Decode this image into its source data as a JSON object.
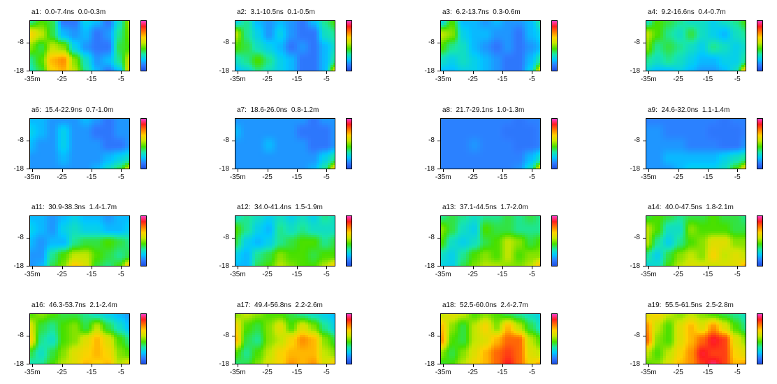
{
  "chart_data": {
    "type": "heatmap",
    "colorscale": [
      "#1f4fe0",
      "#2f7bff",
      "#00c8ff",
      "#18e6a8",
      "#44e000",
      "#c8e600",
      "#ffd000",
      "#ff7a00",
      "#ff1e1e",
      "#ff3cc8"
    ],
    "x_ticks": [
      "-35m",
      "-25",
      "-15",
      "-5"
    ],
    "x_tick_values": [
      -35,
      -25,
      -15,
      -5
    ],
    "xlim": [
      -36,
      -2
    ],
    "y_ticks": [
      "-8",
      "-18"
    ],
    "y_tick_values": [
      -8,
      -18
    ],
    "ylim": [
      -18,
      0
    ],
    "panels": [
      {
        "label": "a1:  0.0-7.4ns  0.0-0.3m",
        "intensity": [
          [
            0.35,
            0.45,
            0.4,
            0.1,
            0.1,
            0.25,
            0.2,
            0.1,
            0.3,
            0.55
          ],
          [
            0.65,
            0.55,
            0.4,
            0.2,
            0.15,
            0.2,
            0.1,
            0.15,
            0.35,
            0.5
          ],
          [
            0.5,
            0.4,
            0.55,
            0.5,
            0.25,
            0.15,
            0.1,
            0.1,
            0.4,
            0.45
          ],
          [
            0.35,
            0.45,
            0.7,
            0.75,
            0.5,
            0.3,
            0.15,
            0.2,
            0.35,
            0.6
          ],
          [
            0.3,
            0.4,
            0.65,
            0.7,
            0.55,
            0.35,
            0.2,
            0.1,
            0.2,
            0.7
          ]
        ]
      },
      {
        "label": "a2:  3.1-10.5ns  0.1-0.5m",
        "intensity": [
          [
            0.25,
            0.35,
            0.2,
            0.15,
            0.2,
            0.15,
            0.1,
            0.2,
            0.35,
            0.45
          ],
          [
            0.55,
            0.35,
            0.25,
            0.15,
            0.25,
            0.15,
            0.1,
            0.1,
            0.3,
            0.35
          ],
          [
            0.45,
            0.4,
            0.3,
            0.25,
            0.2,
            0.1,
            0.15,
            0.1,
            0.2,
            0.3
          ],
          [
            0.3,
            0.35,
            0.45,
            0.35,
            0.25,
            0.2,
            0.1,
            0.1,
            0.2,
            0.35
          ],
          [
            0.2,
            0.25,
            0.35,
            0.3,
            0.25,
            0.2,
            0.1,
            0.1,
            0.2,
            0.65
          ]
        ]
      },
      {
        "label": "a3:  6.2-13.7ns  0.3-0.6m",
        "intensity": [
          [
            0.25,
            0.45,
            0.2,
            0.2,
            0.15,
            0.2,
            0.15,
            0.15,
            0.2,
            0.35
          ],
          [
            0.55,
            0.5,
            0.25,
            0.2,
            0.2,
            0.15,
            0.15,
            0.1,
            0.2,
            0.25
          ],
          [
            0.45,
            0.35,
            0.3,
            0.2,
            0.15,
            0.1,
            0.15,
            0.1,
            0.15,
            0.2
          ],
          [
            0.3,
            0.25,
            0.3,
            0.25,
            0.2,
            0.15,
            0.1,
            0.1,
            0.2,
            0.35
          ],
          [
            0.2,
            0.2,
            0.25,
            0.25,
            0.2,
            0.15,
            0.1,
            0.1,
            0.25,
            0.7
          ]
        ]
      },
      {
        "label": "a4:  9.2-16.6ns  0.4-0.7m",
        "intensity": [
          [
            0.3,
            0.45,
            0.4,
            0.35,
            0.3,
            0.3,
            0.25,
            0.3,
            0.35,
            0.45
          ],
          [
            0.55,
            0.45,
            0.35,
            0.3,
            0.4,
            0.3,
            0.25,
            0.2,
            0.3,
            0.35
          ],
          [
            0.5,
            0.35,
            0.4,
            0.35,
            0.3,
            0.25,
            0.35,
            0.3,
            0.25,
            0.3
          ],
          [
            0.35,
            0.3,
            0.35,
            0.3,
            0.25,
            0.2,
            0.2,
            0.25,
            0.25,
            0.35
          ],
          [
            0.25,
            0.2,
            0.2,
            0.25,
            0.2,
            0.15,
            0.15,
            0.2,
            0.3,
            0.75
          ]
        ]
      },
      {
        "label": "a6:  15.4-22.9ns  0.7-1.0m",
        "intensity": [
          [
            0.2,
            0.2,
            0.15,
            0.15,
            0.15,
            0.2,
            0.15,
            0.1,
            0.15,
            0.15
          ],
          [
            0.25,
            0.2,
            0.15,
            0.25,
            0.15,
            0.15,
            0.1,
            0.1,
            0.15,
            0.15
          ],
          [
            0.2,
            0.15,
            0.15,
            0.25,
            0.15,
            0.15,
            0.15,
            0.1,
            0.1,
            0.15
          ],
          [
            0.15,
            0.15,
            0.15,
            0.2,
            0.15,
            0.15,
            0.15,
            0.2,
            0.25,
            0.3
          ],
          [
            0.15,
            0.15,
            0.15,
            0.15,
            0.15,
            0.15,
            0.2,
            0.3,
            0.4,
            0.65
          ]
        ]
      },
      {
        "label": "a7:  18.6-26.0ns  0.8-1.2m",
        "intensity": [
          [
            0.15,
            0.15,
            0.15,
            0.15,
            0.15,
            0.15,
            0.15,
            0.1,
            0.15,
            0.15
          ],
          [
            0.2,
            0.15,
            0.15,
            0.15,
            0.15,
            0.15,
            0.1,
            0.1,
            0.1,
            0.15
          ],
          [
            0.15,
            0.15,
            0.15,
            0.2,
            0.15,
            0.15,
            0.15,
            0.1,
            0.1,
            0.15
          ],
          [
            0.15,
            0.15,
            0.15,
            0.15,
            0.15,
            0.15,
            0.15,
            0.15,
            0.25,
            0.35
          ],
          [
            0.15,
            0.15,
            0.15,
            0.15,
            0.15,
            0.15,
            0.15,
            0.2,
            0.35,
            0.7
          ]
        ]
      },
      {
        "label": "a8:  21.7-29.1ns  1.0-1.3m",
        "intensity": [
          [
            0.12,
            0.12,
            0.12,
            0.12,
            0.12,
            0.12,
            0.12,
            0.1,
            0.12,
            0.12
          ],
          [
            0.12,
            0.12,
            0.12,
            0.12,
            0.12,
            0.12,
            0.1,
            0.1,
            0.1,
            0.12
          ],
          [
            0.12,
            0.12,
            0.12,
            0.15,
            0.12,
            0.12,
            0.12,
            0.1,
            0.1,
            0.12
          ],
          [
            0.12,
            0.12,
            0.12,
            0.12,
            0.12,
            0.12,
            0.12,
            0.12,
            0.2,
            0.3
          ],
          [
            0.12,
            0.12,
            0.12,
            0.12,
            0.12,
            0.12,
            0.12,
            0.15,
            0.3,
            0.7
          ]
        ]
      },
      {
        "label": "a9:  24.6-32.0ns  1.1-1.4m",
        "intensity": [
          [
            0.12,
            0.12,
            0.12,
            0.12,
            0.12,
            0.12,
            0.12,
            0.1,
            0.12,
            0.12
          ],
          [
            0.15,
            0.15,
            0.12,
            0.12,
            0.12,
            0.12,
            0.1,
            0.1,
            0.1,
            0.12
          ],
          [
            0.15,
            0.15,
            0.15,
            0.15,
            0.12,
            0.12,
            0.12,
            0.1,
            0.1,
            0.15
          ],
          [
            0.15,
            0.15,
            0.2,
            0.2,
            0.2,
            0.2,
            0.2,
            0.25,
            0.3,
            0.35
          ],
          [
            0.15,
            0.15,
            0.15,
            0.2,
            0.25,
            0.25,
            0.25,
            0.3,
            0.45,
            0.7
          ]
        ]
      },
      {
        "label": "a11:  30.9-38.3ns  1.4-1.7m",
        "intensity": [
          [
            0.2,
            0.2,
            0.15,
            0.2,
            0.25,
            0.2,
            0.2,
            0.15,
            0.2,
            0.2
          ],
          [
            0.25,
            0.2,
            0.15,
            0.25,
            0.3,
            0.25,
            0.25,
            0.2,
            0.2,
            0.25
          ],
          [
            0.2,
            0.15,
            0.2,
            0.2,
            0.35,
            0.4,
            0.4,
            0.45,
            0.4,
            0.35
          ],
          [
            0.15,
            0.15,
            0.35,
            0.45,
            0.55,
            0.55,
            0.45,
            0.4,
            0.35,
            0.4
          ],
          [
            0.15,
            0.2,
            0.4,
            0.5,
            0.7,
            0.6,
            0.4,
            0.35,
            0.45,
            0.75
          ]
        ]
      },
      {
        "label": "a12:  34.0-41.4ns  1.5-1.9m",
        "intensity": [
          [
            0.3,
            0.35,
            0.3,
            0.25,
            0.3,
            0.25,
            0.3,
            0.25,
            0.35,
            0.3
          ],
          [
            0.45,
            0.35,
            0.25,
            0.2,
            0.35,
            0.3,
            0.35,
            0.3,
            0.3,
            0.3
          ],
          [
            0.4,
            0.25,
            0.2,
            0.25,
            0.35,
            0.4,
            0.45,
            0.45,
            0.35,
            0.4
          ],
          [
            0.25,
            0.2,
            0.35,
            0.4,
            0.5,
            0.45,
            0.45,
            0.4,
            0.45,
            0.45
          ],
          [
            0.2,
            0.2,
            0.4,
            0.45,
            0.55,
            0.5,
            0.45,
            0.45,
            0.55,
            0.7
          ]
        ]
      },
      {
        "label": "a13:  37.1-44.5ns  1.7-2.0m",
        "intensity": [
          [
            0.35,
            0.4,
            0.35,
            0.3,
            0.35,
            0.35,
            0.4,
            0.35,
            0.4,
            0.35
          ],
          [
            0.5,
            0.4,
            0.3,
            0.25,
            0.45,
            0.4,
            0.4,
            0.35,
            0.35,
            0.35
          ],
          [
            0.45,
            0.3,
            0.25,
            0.3,
            0.4,
            0.45,
            0.55,
            0.5,
            0.4,
            0.45
          ],
          [
            0.3,
            0.25,
            0.35,
            0.45,
            0.5,
            0.45,
            0.55,
            0.45,
            0.5,
            0.5
          ],
          [
            0.25,
            0.25,
            0.4,
            0.5,
            0.55,
            0.55,
            0.5,
            0.5,
            0.55,
            0.75
          ]
        ]
      },
      {
        "label": "a14:  40.0-47.5ns  1.8-2.1m",
        "intensity": [
          [
            0.4,
            0.45,
            0.4,
            0.35,
            0.4,
            0.4,
            0.45,
            0.4,
            0.4,
            0.35
          ],
          [
            0.55,
            0.45,
            0.3,
            0.3,
            0.5,
            0.45,
            0.45,
            0.45,
            0.4,
            0.4
          ],
          [
            0.55,
            0.35,
            0.25,
            0.35,
            0.45,
            0.5,
            0.6,
            0.6,
            0.5,
            0.5
          ],
          [
            0.35,
            0.25,
            0.4,
            0.5,
            0.55,
            0.5,
            0.65,
            0.55,
            0.6,
            0.55
          ],
          [
            0.25,
            0.3,
            0.45,
            0.55,
            0.6,
            0.6,
            0.55,
            0.6,
            0.6,
            0.75
          ]
        ]
      },
      {
        "label": "a16:  46.3-53.7ns  2.1-2.4m",
        "intensity": [
          [
            0.45,
            0.5,
            0.45,
            0.4,
            0.4,
            0.35,
            0.3,
            0.25,
            0.2,
            0.15
          ],
          [
            0.6,
            0.4,
            0.35,
            0.45,
            0.5,
            0.4,
            0.55,
            0.4,
            0.3,
            0.2
          ],
          [
            0.65,
            0.35,
            0.3,
            0.45,
            0.5,
            0.6,
            0.7,
            0.6,
            0.45,
            0.35
          ],
          [
            0.4,
            0.3,
            0.4,
            0.5,
            0.6,
            0.65,
            0.7,
            0.65,
            0.5,
            0.45
          ],
          [
            0.3,
            0.35,
            0.45,
            0.55,
            0.6,
            0.7,
            0.65,
            0.7,
            0.55,
            0.65
          ]
        ]
      },
      {
        "label": "a17:  49.4-56.8ns  2.2-2.6m",
        "intensity": [
          [
            0.5,
            0.55,
            0.5,
            0.45,
            0.45,
            0.4,
            0.35,
            0.3,
            0.25,
            0.2
          ],
          [
            0.65,
            0.45,
            0.4,
            0.5,
            0.6,
            0.45,
            0.6,
            0.5,
            0.35,
            0.25
          ],
          [
            0.7,
            0.4,
            0.35,
            0.5,
            0.55,
            0.65,
            0.75,
            0.7,
            0.5,
            0.4
          ],
          [
            0.45,
            0.35,
            0.45,
            0.55,
            0.65,
            0.7,
            0.7,
            0.7,
            0.55,
            0.5
          ],
          [
            0.35,
            0.4,
            0.5,
            0.6,
            0.65,
            0.75,
            0.7,
            0.75,
            0.6,
            0.7
          ]
        ]
      },
      {
        "label": "a18:  52.5-60.0ns  2.4-2.7m",
        "intensity": [
          [
            0.55,
            0.6,
            0.55,
            0.45,
            0.5,
            0.45,
            0.4,
            0.35,
            0.3,
            0.25
          ],
          [
            0.7,
            0.5,
            0.4,
            0.55,
            0.65,
            0.5,
            0.7,
            0.55,
            0.4,
            0.3
          ],
          [
            0.75,
            0.45,
            0.4,
            0.55,
            0.6,
            0.7,
            0.8,
            0.8,
            0.55,
            0.45
          ],
          [
            0.5,
            0.4,
            0.5,
            0.6,
            0.7,
            0.8,
            0.85,
            0.8,
            0.6,
            0.55
          ],
          [
            0.4,
            0.45,
            0.55,
            0.65,
            0.7,
            0.8,
            0.9,
            0.8,
            0.65,
            0.75
          ]
        ]
      },
      {
        "label": "a19:  55.5-61.5ns  2.5-2.8m",
        "intensity": [
          [
            0.6,
            0.65,
            0.55,
            0.5,
            0.55,
            0.5,
            0.45,
            0.4,
            0.35,
            0.3
          ],
          [
            0.75,
            0.55,
            0.45,
            0.6,
            0.7,
            0.6,
            0.75,
            0.6,
            0.45,
            0.35
          ],
          [
            0.8,
            0.5,
            0.45,
            0.6,
            0.7,
            0.8,
            0.9,
            0.85,
            0.6,
            0.5
          ],
          [
            0.55,
            0.45,
            0.55,
            0.65,
            0.75,
            0.9,
            0.85,
            0.85,
            0.65,
            0.6
          ],
          [
            0.45,
            0.5,
            0.6,
            0.7,
            0.75,
            0.85,
            0.95,
            0.85,
            0.7,
            0.75
          ]
        ]
      }
    ]
  }
}
